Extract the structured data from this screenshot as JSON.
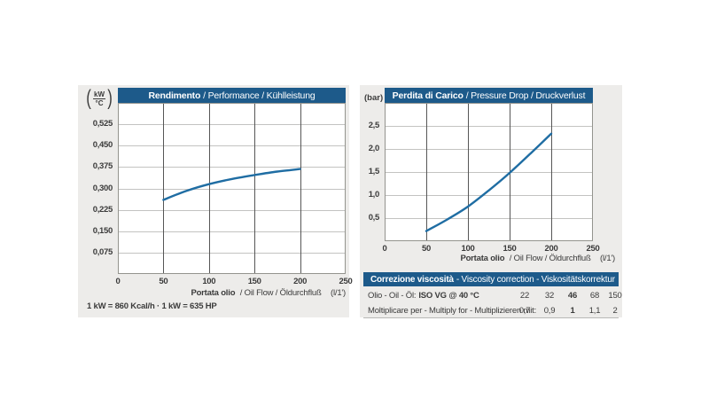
{
  "colors": {
    "header_bar": "#1d5a8a",
    "curve": "#1f6da3",
    "card_bg": "#edecea",
    "plot_bg": "#ffffff",
    "grid_light": "#c3c3c1",
    "grid_dark": "#565656",
    "plot_border": "#94948e",
    "text": "#3b3b3b"
  },
  "chart_data": [
    {
      "type": "line",
      "title_bold": "Rendimento",
      "title_rest": "/ Performance / Kühlleistung",
      "unit_fraction": {
        "top": "kW",
        "bottom": "°C"
      },
      "xlabel_bold": "Portata olio",
      "xlabel_rest": "/ Oil Flow / Öldurchfluß",
      "xlabel_unit": "(l/1')",
      "footnote": "1 kW = 860 Kcal/h · 1 kW = 635 HP",
      "xlim": [
        0,
        250
      ],
      "ylim": [
        0,
        0.6
      ],
      "grid": true,
      "legend": "none",
      "x_ticks": {
        "values": [
          0,
          50,
          100,
          150,
          200,
          250
        ],
        "labels": [
          "0",
          "50",
          "100",
          "150",
          "200",
          "250"
        ]
      },
      "y_ticks": {
        "values": [
          0.075,
          0.15,
          0.225,
          0.3,
          0.375,
          0.45,
          0.525
        ],
        "labels": [
          "0,075",
          "0,150",
          "0,225",
          "0,300",
          "0,375",
          "0,450",
          "0,525"
        ]
      },
      "series": [
        {
          "name": "cooling-capacity",
          "x": [
            50,
            75,
            100,
            125,
            150,
            175,
            200
          ],
          "y": [
            0.26,
            0.291,
            0.315,
            0.333,
            0.347,
            0.359,
            0.368
          ]
        }
      ]
    },
    {
      "type": "line",
      "title_bold": "Perdita di Carico",
      "title_rest": "/ Pressure Drop / Druckverlust",
      "unit_text": "(bar)",
      "xlabel_bold": "Portata olio",
      "xlabel_rest": "/ Oil Flow / Öldurchfluß",
      "xlabel_unit": "(l/1')",
      "xlim": [
        0,
        250
      ],
      "ylim": [
        0,
        3
      ],
      "grid": true,
      "legend": "none",
      "x_ticks": {
        "values": [
          0,
          50,
          100,
          150,
          200,
          250
        ],
        "labels": [
          "0",
          "50",
          "100",
          "150",
          "200",
          "250"
        ]
      },
      "y_ticks": {
        "values": [
          0.5,
          1.0,
          1.5,
          2.0,
          2.5
        ],
        "labels": [
          "0,5",
          "1,0",
          "1,5",
          "2,0",
          "2,5"
        ]
      },
      "series": [
        {
          "name": "pressure-drop",
          "x": [
            50,
            75,
            100,
            125,
            150,
            175,
            200
          ],
          "y": [
            0.22,
            0.47,
            0.75,
            1.1,
            1.48,
            1.9,
            2.33
          ]
        }
      ]
    }
  ],
  "viscosity_table": {
    "header_bold": "Correzione viscosità",
    "header_rest": "- Viscosity correction - Viskositätskorrektur",
    "rows": [
      {
        "label": "Olio - Oil - Öl:",
        "label_bold": "ISO VG @ 40 °C",
        "values": [
          "22",
          "32",
          "46",
          "68",
          "150"
        ],
        "bold_value_index": 2
      },
      {
        "label": "Moltiplicare per - Multiply for - Multiplizieren mit:",
        "label_bold": "",
        "values": [
          "0,7",
          "0,9",
          "1",
          "1,1",
          "2"
        ],
        "bold_value_index": 2
      }
    ]
  }
}
